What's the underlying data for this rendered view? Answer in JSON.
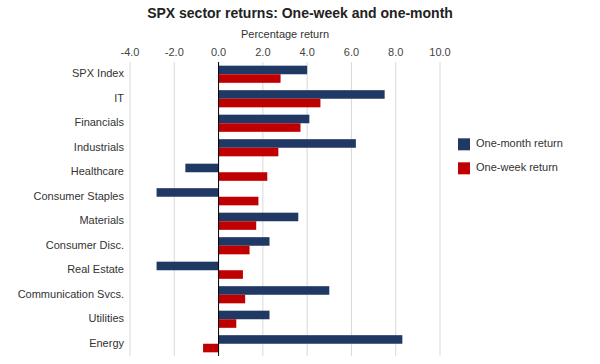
{
  "chart_data": {
    "type": "bar",
    "orientation": "horizontal",
    "title": "SPX sector returns: One-week and one-month",
    "xlabel": "Percentage return",
    "categories": [
      "SPX Index",
      "IT",
      "Financials",
      "Industrials",
      "Healthcare",
      "Consumer Staples",
      "Materials",
      "Consumer Disc.",
      "Real Estate",
      "Communication Svcs.",
      "Utilities",
      "Energy"
    ],
    "series": [
      {
        "name": "One-month return",
        "color": "#1F3864",
        "values": [
          4.0,
          7.5,
          4.1,
          6.2,
          -1.5,
          -2.8,
          3.6,
          2.3,
          -2.8,
          5.0,
          2.3,
          8.3
        ]
      },
      {
        "name": "One-week return",
        "color": "#C00000",
        "values": [
          2.8,
          4.6,
          3.7,
          2.7,
          2.2,
          1.8,
          1.7,
          1.4,
          1.1,
          1.2,
          0.8,
          -0.7
        ]
      }
    ],
    "xlim": [
      -4.0,
      10.0
    ],
    "xticks": [
      {
        "value": -4.0,
        "label": "-4.0"
      },
      {
        "value": -2.0,
        "label": "-2.0"
      },
      {
        "value": 0.0,
        "label": "0.0"
      },
      {
        "value": 2.0,
        "label": "2.0"
      },
      {
        "value": 4.0,
        "label": "4.0"
      },
      {
        "value": 6.0,
        "label": "6.0"
      },
      {
        "value": 8.0,
        "label": "8.0"
      },
      {
        "value": 10.0,
        "label": "10.0"
      }
    ],
    "grid": true,
    "legend": "right"
  }
}
